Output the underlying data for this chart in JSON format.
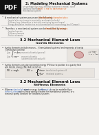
{
  "bg_color": "#f2f0ed",
  "pdf_badge_color": "#111111",
  "pdf_badge_text": "PDF",
  "title": "2: Modeling Mechanical Systems",
  "orange_color": "#e05a10",
  "blue_color": "#4472c4",
  "red_color": "#c0392b",
  "heading_color": "#111111",
  "body_color": "#222222",
  "faint_color": "#777777",
  "gray_color": "#999999",
  "line_color": "#cccccc",
  "disk_fill": "#d4a0a0",
  "disk_edge": "#994444"
}
